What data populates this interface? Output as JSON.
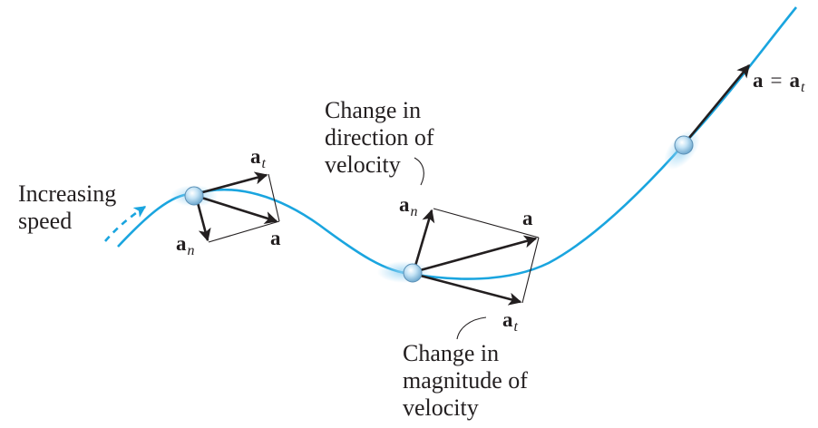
{
  "colors": {
    "path": "#1aa5df",
    "vector": "#231f20",
    "thin_line": "#231f20",
    "particle": "#a9d4ee"
  },
  "labels": {
    "increasing_speed_line1": "Increasing",
    "increasing_speed_line2": "speed",
    "direction_change_line1": "Change in",
    "direction_change_line2": "direction of",
    "direction_change_line3": "velocity",
    "magnitude_change_line1": "Change in",
    "magnitude_change_line2": "magnitude of",
    "magnitude_change_line3": "velocity",
    "vec_a": "a",
    "vec_t_sub": "t",
    "vec_n_sub": "n",
    "equals": "="
  }
}
